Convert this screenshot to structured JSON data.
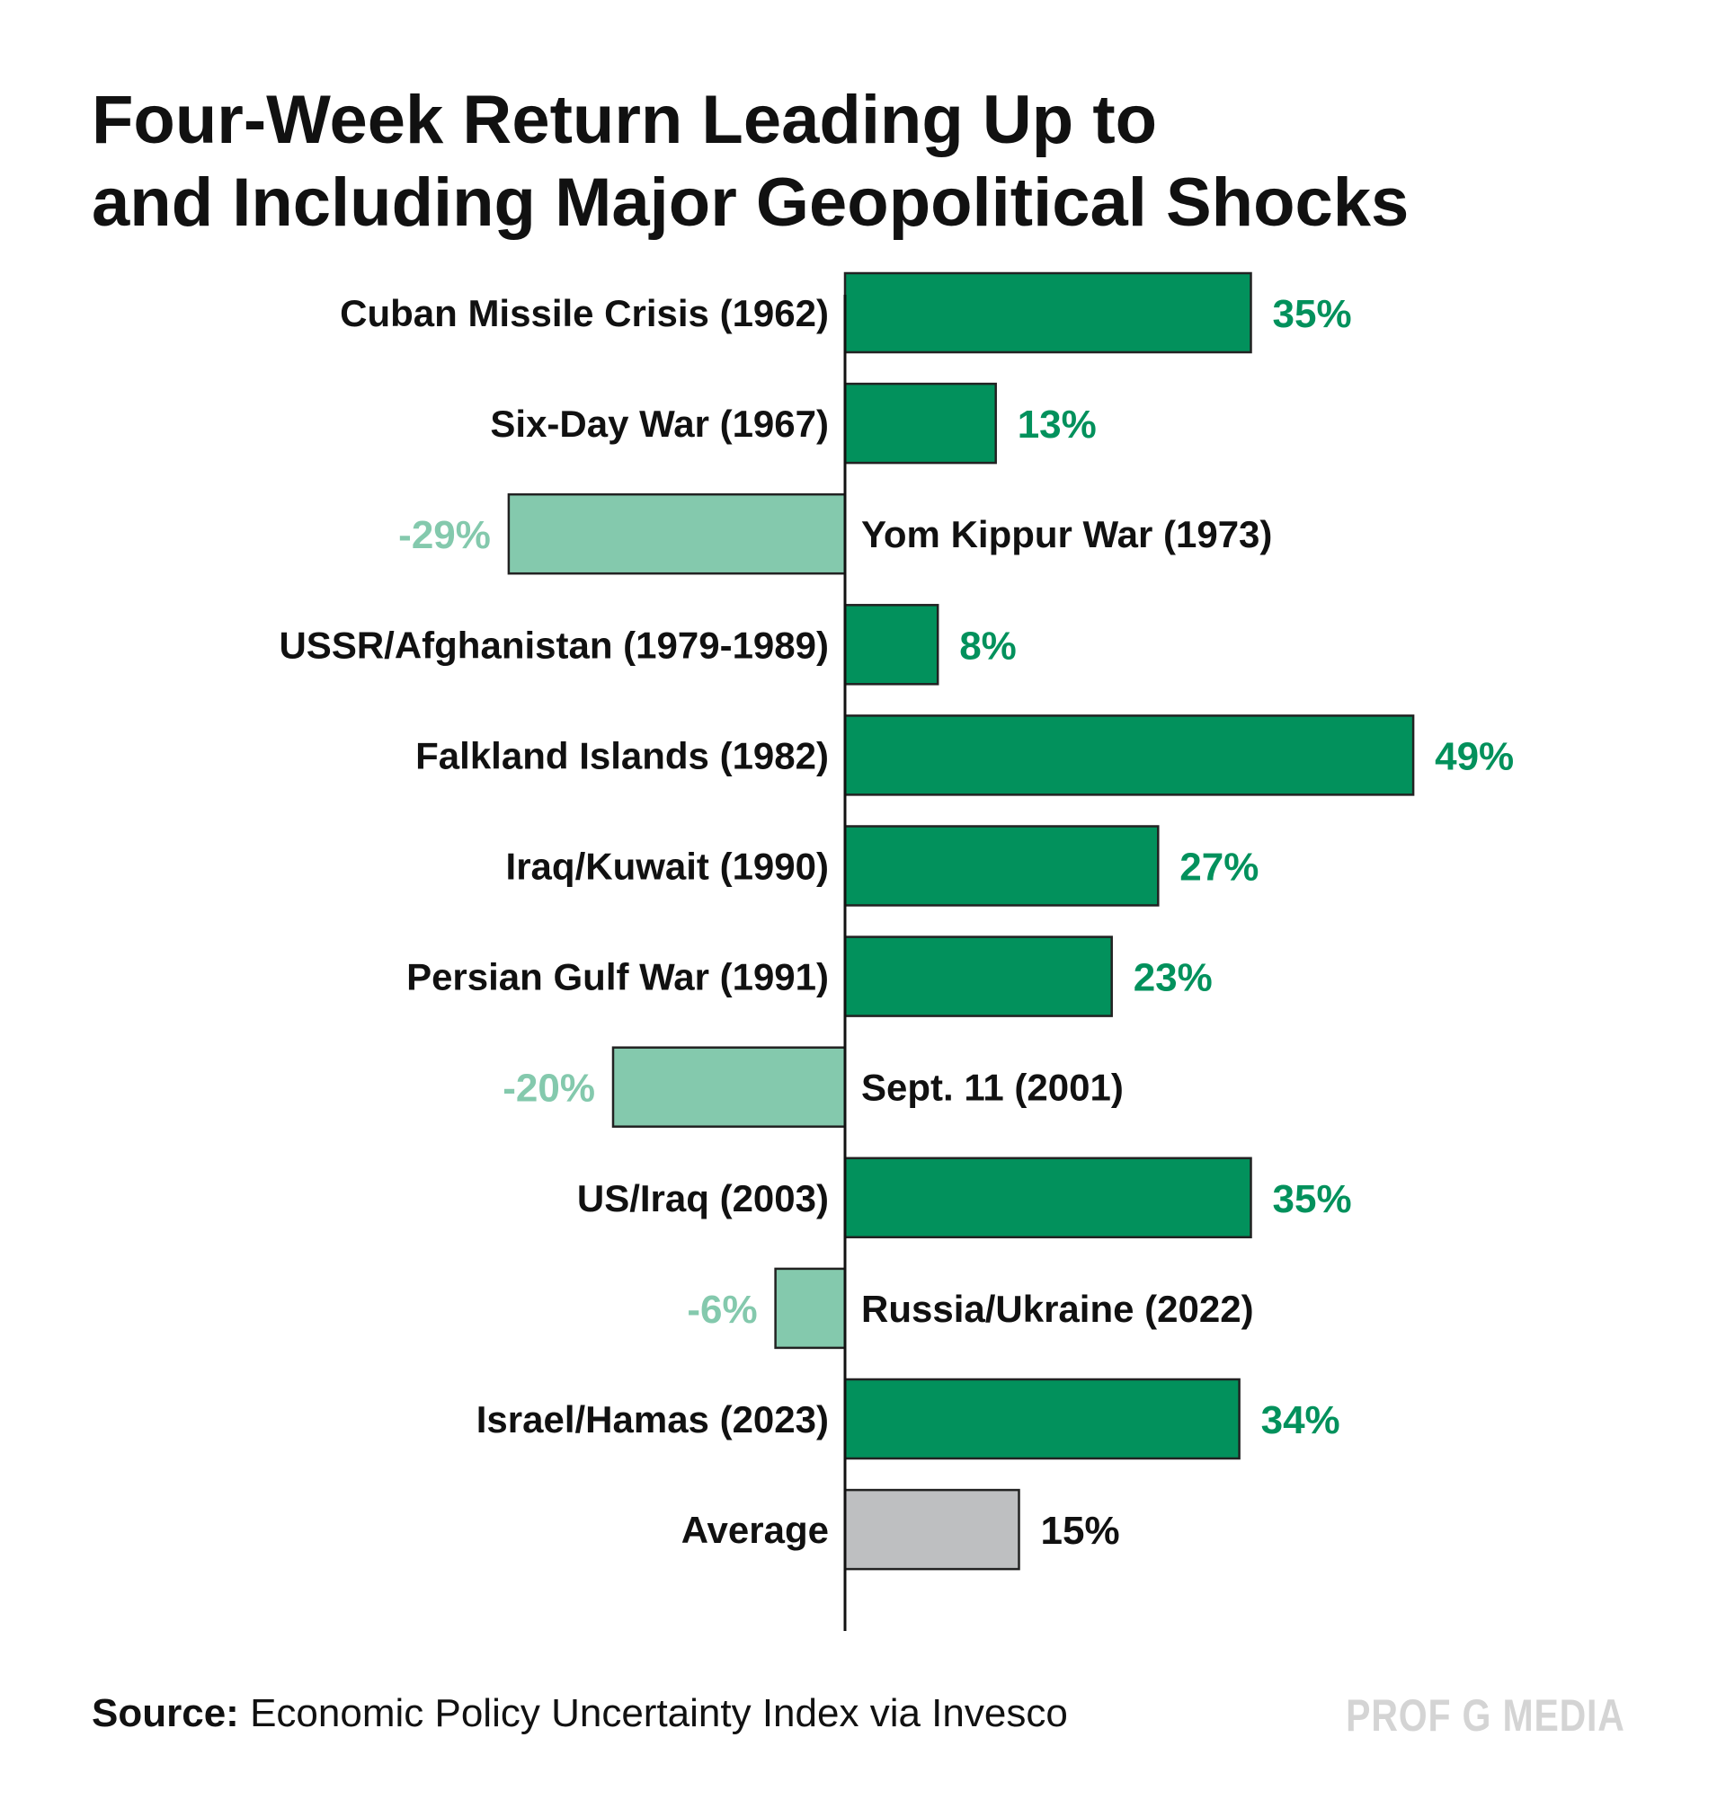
{
  "title": {
    "line1": "Four-Week Return Leading Up to",
    "line2": "and Including Major Geopolitical Shocks"
  },
  "chart_data": {
    "type": "bar",
    "orientation": "horizontal",
    "categories": [
      "Cuban Missile Crisis (1962)",
      "Six-Day War (1967)",
      "Yom Kippur War (1973)",
      "USSR/Afghanistan (1979-1989)",
      "Falkland Islands (1982)",
      "Iraq/Kuwait (1990)",
      "Persian Gulf War (1991)",
      "Sept. 11 (2001)",
      "US/Iraq (2003)",
      "Russia/Ukraine (2022)",
      "Israel/Hamas (2023)",
      "Average"
    ],
    "values": [
      35,
      13,
      -29,
      8,
      49,
      27,
      23,
      -20,
      35,
      -6,
      34,
      15
    ],
    "value_labels": [
      "35%",
      "13%",
      "-29%",
      "8%",
      "49%",
      "27%",
      "23%",
      "-20%",
      "35%",
      "-6%",
      "34%",
      "15%"
    ],
    "unit": "%",
    "colors": {
      "positive": "#02915c",
      "negative": "#84c9ad",
      "average": "#bebfc1",
      "positive_label": "#02915c",
      "negative_label": "#84c9ad",
      "average_label": "#111111",
      "bar_outline": "#222222",
      "axis": "#111111"
    },
    "grid": false,
    "legend": "none"
  },
  "footer": {
    "source_label": "Source:",
    "source_text": "Economic Policy Uncertainty Index via Invesco",
    "watermark": "PROF G MEDIA"
  }
}
